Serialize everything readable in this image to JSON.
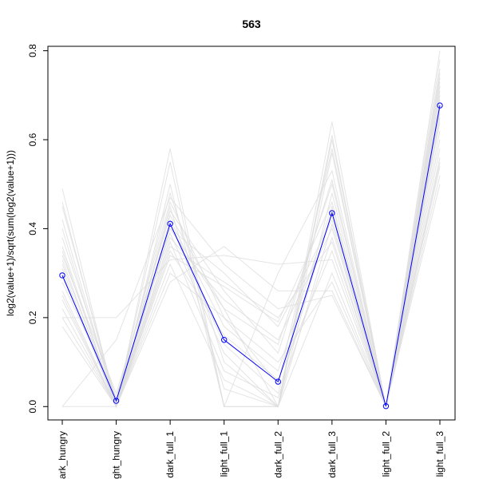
{
  "chart_data": {
    "type": "line",
    "title": "563",
    "xlabel": "",
    "ylabel": "log2(value+1)/sqrt(sum(log2(value+1)))",
    "categories": [
      "dark_hungry",
      "light_hungry",
      "dark_full_1",
      "light_full_1",
      "dark_full_2",
      "dark_full_3",
      "light_full_2",
      "light_full_3"
    ],
    "category_labels_visible": [
      "ark_hungry",
      "ght_hungry",
      "dark_full_1",
      "light_full_1",
      "dark_full_2",
      "dark_full_3",
      "light_full_2",
      "light_full_3"
    ],
    "ylim": [
      -0.03,
      0.81
    ],
    "yticks": [
      0.0,
      0.2,
      0.4,
      0.6,
      0.8
    ],
    "ytick_labels": [
      "0.0",
      "0.2",
      "0.4",
      "0.6",
      "0.8"
    ],
    "grid": false,
    "highlight_color": "#0000ff",
    "background_color": "#dddddd",
    "series": [
      {
        "values": [
          0.295,
          0.013,
          0.411,
          0.15,
          0.056,
          0.435,
          0.001,
          0.677
        ],
        "highlight": true
      },
      {
        "values": [
          0.49,
          0.0,
          0.58,
          0.0,
          0.0,
          0.64,
          0.0,
          0.8
        ],
        "highlight": false
      },
      {
        "values": [
          0.46,
          0.0,
          0.55,
          0.0,
          0.0,
          0.61,
          0.0,
          0.78
        ],
        "highlight": false
      },
      {
        "values": [
          0.45,
          0.01,
          0.48,
          0.1,
          0.0,
          0.6,
          0.0,
          0.76
        ],
        "highlight": false
      },
      {
        "values": [
          0.38,
          0.02,
          0.46,
          0.2,
          0.05,
          0.58,
          0.0,
          0.74
        ],
        "highlight": false
      },
      {
        "values": [
          0.35,
          0.0,
          0.44,
          0.26,
          0.12,
          0.51,
          0.0,
          0.72
        ],
        "highlight": false
      },
      {
        "values": [
          0.34,
          0.03,
          0.43,
          0.22,
          0.0,
          0.48,
          0.0,
          0.7
        ],
        "highlight": false
      },
      {
        "values": [
          0.33,
          0.0,
          0.42,
          0.18,
          0.08,
          0.45,
          0.0,
          0.69
        ],
        "highlight": false
      },
      {
        "values": [
          0.32,
          0.01,
          0.41,
          0.14,
          0.03,
          0.44,
          0.0,
          0.68
        ],
        "highlight": false
      },
      {
        "values": [
          0.3,
          0.0,
          0.4,
          0.3,
          0.18,
          0.42,
          0.0,
          0.66
        ],
        "highlight": false
      },
      {
        "values": [
          0.28,
          0.02,
          0.39,
          0.12,
          0.0,
          0.41,
          0.0,
          0.65
        ],
        "highlight": false
      },
      {
        "values": [
          0.26,
          0.0,
          0.38,
          0.24,
          0.15,
          0.4,
          0.0,
          0.64
        ],
        "highlight": false
      },
      {
        "values": [
          0.25,
          0.0,
          0.37,
          0.08,
          0.02,
          0.38,
          0.0,
          0.62
        ],
        "highlight": false
      },
      {
        "values": [
          0.24,
          0.0,
          0.36,
          0.28,
          0.2,
          0.37,
          0.0,
          0.6
        ],
        "highlight": false
      },
      {
        "values": [
          0.22,
          0.0,
          0.35,
          0.16,
          0.06,
          0.35,
          0.0,
          0.58
        ],
        "highlight": false
      },
      {
        "values": [
          0.2,
          0.2,
          0.33,
          0.34,
          0.32,
          0.33,
          0.0,
          0.56
        ],
        "highlight": false
      },
      {
        "values": [
          0.2,
          0.0,
          0.32,
          0.06,
          0.0,
          0.3,
          0.0,
          0.54
        ],
        "highlight": false
      },
      {
        "values": [
          0.18,
          0.0,
          0.3,
          0.2,
          0.1,
          0.28,
          0.0,
          0.52
        ],
        "highlight": false
      },
      {
        "values": [
          0.0,
          0.0,
          0.28,
          0.36,
          0.26,
          0.26,
          0.0,
          0.5
        ],
        "highlight": false
      },
      {
        "values": [
          0.0,
          0.15,
          0.47,
          0.32,
          0.22,
          0.25,
          0.0,
          0.55
        ],
        "highlight": false
      },
      {
        "values": [
          0.4,
          0.0,
          0.5,
          0.0,
          0.3,
          0.53,
          0.0,
          0.73
        ],
        "highlight": false
      },
      {
        "values": [
          0.42,
          0.0,
          0.45,
          0.04,
          0.0,
          0.57,
          0.0,
          0.75
        ],
        "highlight": false
      },
      {
        "values": [
          0.36,
          0.0,
          0.34,
          0.27,
          0.19,
          0.46,
          0.0,
          0.71
        ],
        "highlight": false
      },
      {
        "values": [
          0.31,
          0.0,
          0.4,
          0.22,
          0.14,
          0.5,
          0.0,
          0.67
        ],
        "highlight": false
      }
    ]
  }
}
